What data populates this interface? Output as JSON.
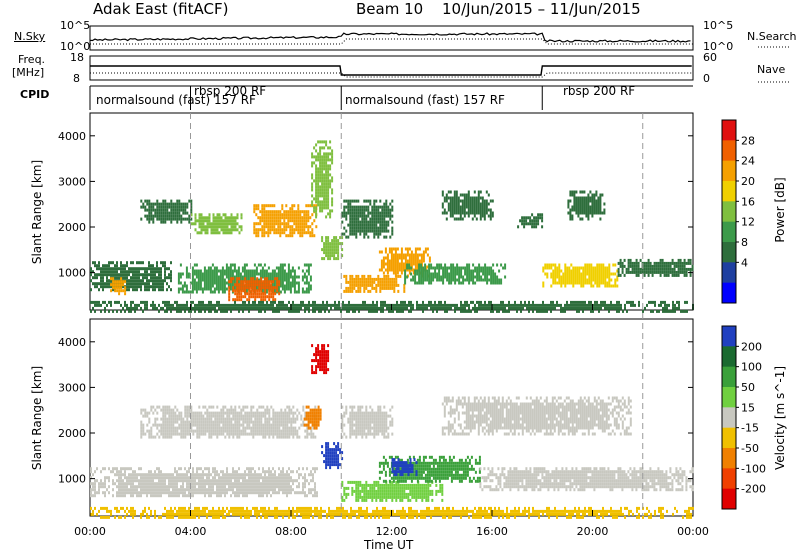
{
  "header": {
    "radar_title": "Adak East (fitACF)",
    "beam_title": "Beam 10",
    "date_range": "10/Jun/2015 – 11/Jun/2015"
  },
  "strip_labels": {
    "nsky": "N.Sky",
    "nsearch": "N.Search",
    "freq": "Freq.",
    "freq_unit": "[MHz]",
    "nave": "Nave",
    "cpid": "CPID",
    "nsky_ticks": [
      "10^5",
      "10^0"
    ],
    "nsearch_ticks": [
      "10^5",
      "10^0"
    ],
    "freq_ticks": [
      "18",
      "8"
    ],
    "nave_ticks": [
      "60",
      "0"
    ]
  },
  "cpid_segments": [
    {
      "label": "normalsound (fast) 157 RF",
      "start_hour": 0
    },
    {
      "label": "rbsp 200 RF",
      "start_hour": 4
    },
    {
      "label": "normalsound (fast) 157 RF",
      "start_hour": 10
    },
    {
      "label": "rbsp 200 RF",
      "start_hour": 18
    }
  ],
  "chart_data": [
    {
      "type": "heatmap",
      "title": "",
      "xlabel": "Time UT",
      "ylabel": "Slant Range [km]",
      "colorbar_label": "Power [dB]",
      "colorbar_ticks": [
        4,
        8,
        12,
        16,
        20,
        24,
        28
      ],
      "colors": [
        "#0000ff",
        "#1e3fa0",
        "#2e6e3c",
        "#3c9a4a",
        "#7fbf3f",
        "#f0d000",
        "#f5a000",
        "#f06000",
        "#e01010"
      ],
      "xlim": [
        0,
        24
      ],
      "ylim": [
        180,
        4500
      ],
      "x_ticks": [
        "00:00",
        "04:00",
        "08:00",
        "12:00",
        "16:00",
        "20:00",
        "00:00"
      ],
      "y_ticks": [
        1000,
        2000,
        3000,
        4000
      ],
      "regions": [
        {
          "t0": 0.0,
          "t1": 3.2,
          "r0": 600,
          "r1": 1250,
          "level": 10
        },
        {
          "t0": 0.8,
          "t1": 1.4,
          "r0": 550,
          "r1": 900,
          "level": 26
        },
        {
          "t0": 3.5,
          "t1": 8.8,
          "r0": 550,
          "r1": 1200,
          "level": 14
        },
        {
          "t0": 5.5,
          "t1": 7.5,
          "r0": 400,
          "r1": 900,
          "level": 28
        },
        {
          "t0": 2.0,
          "t1": 4.0,
          "r0": 2100,
          "r1": 2600,
          "level": 10
        },
        {
          "t0": 4.0,
          "t1": 6.0,
          "r0": 1900,
          "r1": 2300,
          "level": 16
        },
        {
          "t0": 6.5,
          "t1": 9.0,
          "r0": 1800,
          "r1": 2500,
          "level": 24
        },
        {
          "t0": 8.8,
          "t1": 9.6,
          "r0": 2200,
          "r1": 3900,
          "level": 16
        },
        {
          "t0": 9.2,
          "t1": 10.0,
          "r0": 1300,
          "r1": 1800,
          "level": 18
        },
        {
          "t0": 10.0,
          "t1": 12.0,
          "r0": 1800,
          "r1": 2600,
          "level": 8
        },
        {
          "t0": 10.0,
          "t1": 12.5,
          "r0": 600,
          "r1": 950,
          "level": 24
        },
        {
          "t0": 11.5,
          "t1": 13.5,
          "r0": 950,
          "r1": 1550,
          "level": 26
        },
        {
          "t0": 12.5,
          "t1": 16.5,
          "r0": 800,
          "r1": 1200,
          "level": 12
        },
        {
          "t0": 14.0,
          "t1": 16.0,
          "r0": 2200,
          "r1": 2800,
          "level": 8
        },
        {
          "t0": 17.0,
          "t1": 18.0,
          "r0": 2000,
          "r1": 2300,
          "level": 8
        },
        {
          "t0": 18.0,
          "t1": 21.0,
          "r0": 700,
          "r1": 1200,
          "level": 22
        },
        {
          "t0": 19.0,
          "t1": 20.5,
          "r0": 2200,
          "r1": 2800,
          "level": 10
        },
        {
          "t0": 21.0,
          "t1": 24.0,
          "r0": 950,
          "r1": 1300,
          "level": 10
        },
        {
          "t0": 0.0,
          "t1": 24.0,
          "r0": 180,
          "r1": 380,
          "level": 8
        }
      ]
    },
    {
      "type": "heatmap",
      "title": "",
      "xlabel": "Time UT",
      "ylabel": "Slant Range [km]",
      "colorbar_label": "Velocity [m s^-1]",
      "colorbar_ticks": [
        200,
        100,
        50,
        15,
        -15,
        -50,
        -100,
        -200
      ],
      "colors": [
        "#2040c0",
        "#1a6a30",
        "#3aa03a",
        "#70d040",
        "#c8c8c0",
        "#f0c000",
        "#f08000",
        "#f04000",
        "#e00000"
      ],
      "xlim": [
        0,
        24
      ],
      "ylim": [
        180,
        4500
      ],
      "x_ticks": [
        "00:00",
        "04:00",
        "08:00",
        "12:00",
        "16:00",
        "20:00",
        "00:00"
      ],
      "y_ticks": [
        1000,
        2000,
        3000,
        4000
      ],
      "regions": [
        {
          "t0": 0.0,
          "t1": 9.0,
          "r0": 600,
          "r1": 1250,
          "level": 0
        },
        {
          "t0": 2.0,
          "t1": 9.0,
          "r0": 1900,
          "r1": 2600,
          "level": 0
        },
        {
          "t0": 8.8,
          "t1": 9.5,
          "r0": 3300,
          "r1": 3950,
          "level": -200
        },
        {
          "t0": 8.5,
          "t1": 9.2,
          "r0": 2100,
          "r1": 2600,
          "level": -50
        },
        {
          "t0": 9.2,
          "t1": 10.0,
          "r0": 1250,
          "r1": 1800,
          "level": 220
        },
        {
          "t0": 10.0,
          "t1": 12.0,
          "r0": 1900,
          "r1": 2600,
          "level": 0
        },
        {
          "t0": 10.0,
          "t1": 14.0,
          "r0": 500,
          "r1": 950,
          "level": 40
        },
        {
          "t0": 11.5,
          "t1": 15.5,
          "r0": 950,
          "r1": 1500,
          "level": 80
        },
        {
          "t0": 12.0,
          "t1": 13.0,
          "r0": 1100,
          "r1": 1450,
          "level": 200
        },
        {
          "t0": 15.5,
          "t1": 24.0,
          "r0": 750,
          "r1": 1250,
          "level": 0
        },
        {
          "t0": 14.0,
          "t1": 21.5,
          "r0": 2000,
          "r1": 2800,
          "level": 0
        },
        {
          "t0": 0.0,
          "t1": 24.0,
          "r0": 180,
          "r1": 380,
          "level": -30
        }
      ]
    }
  ]
}
